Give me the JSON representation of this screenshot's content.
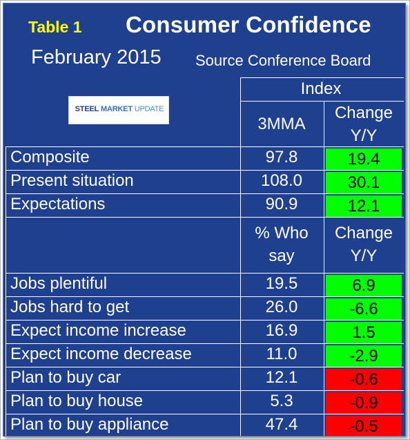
{
  "header": {
    "table_label": "Table 1",
    "title": "Consumer Confidence",
    "subtitle": "February 2015",
    "source": "Source Conference Board",
    "logo": {
      "steel": "STEEL",
      "market": "MARKET",
      "update": "UPDATE"
    }
  },
  "index_header": "Index",
  "columns": {
    "index_value": "3MMA",
    "change_line1": "Change",
    "change_line2": "Y/Y",
    "pct_line1": "% Who",
    "pct_line2": "say"
  },
  "index_rows": [
    {
      "label": "Composite",
      "value": "97.8",
      "change": "19.4",
      "status": "positive"
    },
    {
      "label": "Present situation",
      "value": "108.0",
      "change": "30.1",
      "status": "positive"
    },
    {
      "label": "Expectations",
      "value": "90.9",
      "change": "12.1",
      "status": "positive"
    }
  ],
  "survey_rows": [
    {
      "label": "Jobs plentiful",
      "value": "19.5",
      "change": "6.9",
      "status": "positive"
    },
    {
      "label": "Jobs hard to get",
      "value": "26.0",
      "change": "-6.6",
      "status": "positive"
    },
    {
      "label": "Expect income increase",
      "value": "16.9",
      "change": "1.5",
      "status": "positive"
    },
    {
      "label": "Expect income decrease",
      "value": "11.0",
      "change": "-2.9",
      "status": "positive"
    },
    {
      "label": "Plan to buy car",
      "value": "12.1",
      "change": "-0.6",
      "status": "negative"
    },
    {
      "label": "Plan to buy house",
      "value": "5.3",
      "change": "-0.9",
      "status": "negative"
    },
    {
      "label": "Plan to buy appliance",
      "value": "47.4",
      "change": "-0.5",
      "status": "negative"
    }
  ],
  "colors": {
    "background": "#1f3f8f",
    "positive": "#00ff00",
    "negative": "#ff0000",
    "table_label": "#ffff00"
  }
}
